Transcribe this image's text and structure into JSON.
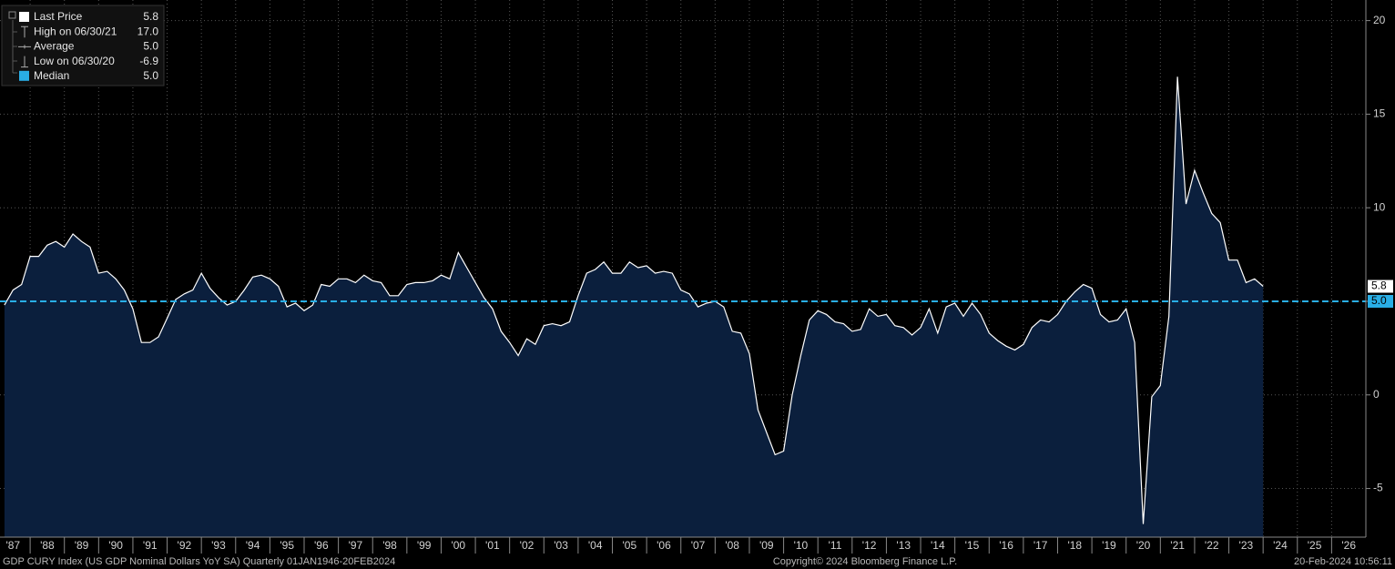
{
  "chart_data": {
    "type": "area",
    "x": [
      1987.25,
      1987.5,
      1987.75,
      1988,
      1988.25,
      1988.5,
      1988.75,
      1989,
      1989.25,
      1989.5,
      1989.75,
      1990,
      1990.25,
      1990.5,
      1990.75,
      1991,
      1991.25,
      1991.5,
      1991.75,
      1992,
      1992.25,
      1992.5,
      1992.75,
      1993,
      1993.25,
      1993.5,
      1993.75,
      1994,
      1994.25,
      1994.5,
      1994.75,
      1995,
      1995.25,
      1995.5,
      1995.75,
      1996,
      1996.25,
      1996.5,
      1996.75,
      1997,
      1997.25,
      1997.5,
      1997.75,
      1998,
      1998.25,
      1998.5,
      1998.75,
      1999,
      1999.25,
      1999.5,
      1999.75,
      2000,
      2000.25,
      2000.5,
      2000.75,
      2001,
      2001.25,
      2001.5,
      2001.75,
      2002,
      2002.25,
      2002.5,
      2002.75,
      2003,
      2003.25,
      2003.5,
      2003.75,
      2004,
      2004.25,
      2004.5,
      2004.75,
      2005,
      2005.25,
      2005.5,
      2005.75,
      2006,
      2006.25,
      2006.5,
      2006.75,
      2007,
      2007.25,
      2007.5,
      2007.75,
      2008,
      2008.25,
      2008.5,
      2008.75,
      2009,
      2009.25,
      2009.5,
      2009.75,
      2010,
      2010.25,
      2010.5,
      2010.75,
      2011,
      2011.25,
      2011.5,
      2011.75,
      2012,
      2012.25,
      2012.5,
      2012.75,
      2013,
      2013.25,
      2013.5,
      2013.75,
      2014,
      2014.25,
      2014.5,
      2014.75,
      2015,
      2015.25,
      2015.5,
      2015.75,
      2016,
      2016.25,
      2016.5,
      2016.75,
      2017,
      2017.25,
      2017.5,
      2017.75,
      2018,
      2018.25,
      2018.5,
      2018.75,
      2019,
      2019.25,
      2019.5,
      2019.75,
      2020,
      2020.25,
      2020.5,
      2020.75,
      2021,
      2021.25,
      2021.5,
      2021.75,
      2022,
      2022.25,
      2022.5,
      2022.75,
      2023,
      2023.25,
      2023.5,
      2023.75,
      2024
    ],
    "series": [
      {
        "color": "#ffffff",
        "fill": "#0b1f3d",
        "values": [
          4.8,
          5.6,
          5.9,
          7.4,
          7.4,
          8.0,
          8.2,
          7.9,
          8.6,
          8.2,
          7.9,
          6.5,
          6.6,
          6.2,
          5.6,
          4.6,
          2.8,
          2.8,
          3.1,
          4.1,
          5.1,
          5.4,
          5.6,
          6.5,
          5.7,
          5.2,
          4.8,
          5.0,
          5.6,
          6.3,
          6.4,
          6.2,
          5.8,
          4.7,
          4.9,
          4.5,
          4.8,
          5.9,
          5.8,
          6.2,
          6.2,
          6.0,
          6.4,
          6.1,
          6.0,
          5.3,
          5.3,
          5.9,
          6.0,
          6.0,
          6.1,
          6.4,
          6.2,
          7.6,
          6.8,
          6.0,
          5.2,
          4.6,
          3.4,
          2.8,
          2.1,
          3.0,
          2.7,
          3.7,
          3.8,
          3.7,
          3.9,
          5.3,
          6.5,
          6.7,
          7.1,
          6.5,
          6.5,
          7.1,
          6.8,
          6.9,
          6.5,
          6.6,
          6.5,
          5.6,
          5.4,
          4.7,
          4.9,
          5.0,
          4.7,
          3.4,
          3.3,
          2.2,
          -0.8,
          -2.0,
          -3.2,
          -3.0,
          0.0,
          2.1,
          4.0,
          4.5,
          4.3,
          3.9,
          3.8,
          3.4,
          3.5,
          4.6,
          4.2,
          4.3,
          3.7,
          3.6,
          3.2,
          3.6,
          4.6,
          3.3,
          4.7,
          4.9,
          4.2,
          4.9,
          4.3,
          3.3,
          2.9,
          2.6,
          2.4,
          2.7,
          3.6,
          4.0,
          3.9,
          4.3,
          5.0,
          5.5,
          5.9,
          5.7,
          4.3,
          3.9,
          4.0,
          4.6,
          2.8,
          -6.9,
          -0.1,
          0.5,
          4.2,
          17.0,
          10.2,
          12.0,
          10.8,
          9.7,
          9.2,
          7.2,
          7.2,
          6.0,
          6.2,
          5.8
        ]
      }
    ],
    "xlim": [
      1987.12,
      2027
    ],
    "ylim": [
      -7.6,
      21.1
    ],
    "xticks": [
      {
        "value": 1987,
        "label": "'87"
      },
      {
        "value": 1988,
        "label": "'88"
      },
      {
        "value": 1989,
        "label": "'89"
      },
      {
        "value": 1990,
        "label": "'90"
      },
      {
        "value": 1991,
        "label": "'91"
      },
      {
        "value": 1992,
        "label": "'92"
      },
      {
        "value": 1993,
        "label": "'93"
      },
      {
        "value": 1994,
        "label": "'94"
      },
      {
        "value": 1995,
        "label": "'95"
      },
      {
        "value": 1996,
        "label": "'96"
      },
      {
        "value": 1997,
        "label": "'97"
      },
      {
        "value": 1998,
        "label": "'98"
      },
      {
        "value": 1999,
        "label": "'99"
      },
      {
        "value": 2000,
        "label": "'00"
      },
      {
        "value": 2001,
        "label": "'01"
      },
      {
        "value": 2002,
        "label": "'02"
      },
      {
        "value": 2003,
        "label": "'03"
      },
      {
        "value": 2004,
        "label": "'04"
      },
      {
        "value": 2005,
        "label": "'05"
      },
      {
        "value": 2006,
        "label": "'06"
      },
      {
        "value": 2007,
        "label": "'07"
      },
      {
        "value": 2008,
        "label": "'08"
      },
      {
        "value": 2009,
        "label": "'09"
      },
      {
        "value": 2010,
        "label": "'10"
      },
      {
        "value": 2011,
        "label": "'11"
      },
      {
        "value": 2012,
        "label": "'12"
      },
      {
        "value": 2013,
        "label": "'13"
      },
      {
        "value": 2014,
        "label": "'14"
      },
      {
        "value": 2015,
        "label": "'15"
      },
      {
        "value": 2016,
        "label": "'16"
      },
      {
        "value": 2017,
        "label": "'17"
      },
      {
        "value": 2018,
        "label": "'18"
      },
      {
        "value": 2019,
        "label": "'19"
      },
      {
        "value": 2020,
        "label": "'20"
      },
      {
        "value": 2021,
        "label": "'21"
      },
      {
        "value": 2022,
        "label": "'22"
      },
      {
        "value": 2023,
        "label": "'23"
      },
      {
        "value": 2024,
        "label": "'24"
      },
      {
        "value": 2025,
        "label": "'25"
      },
      {
        "value": 2026,
        "label": "'26"
      }
    ],
    "yticks": [
      -5,
      0,
      5,
      10,
      15,
      20
    ],
    "grid": true,
    "last_value": 5.8,
    "median": {
      "value": 5,
      "label": "5.0",
      "color": "#29aee6"
    },
    "legend": [
      {
        "name": "Last Price",
        "value": "5.8"
      },
      {
        "name": "High on 06/30/21",
        "value": "17.0"
      },
      {
        "name": "Average",
        "value": "5.0"
      },
      {
        "name": "Low on 06/30/20",
        "value": "-6.9"
      },
      {
        "name": "Median",
        "value": "5.0"
      }
    ],
    "footer": {
      "left": "GDP CURY Index (US GDP Nominal Dollars YoY SA)  Quarterly 01JAN1946-20FEB2024",
      "center": "Copyright© 2024 Bloomberg Finance L.P.",
      "right": "20-Feb-2024 10:56:11"
    }
  }
}
